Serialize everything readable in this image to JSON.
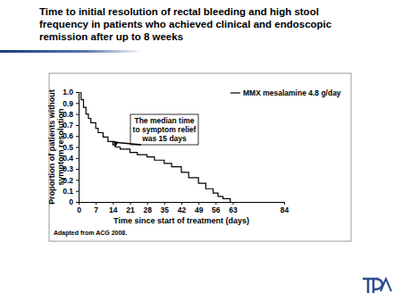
{
  "chart_data": {
    "type": "line",
    "title": [
      "Time to initial resolution of rectal bleeding and high stool",
      "frequency in patients who achieved clinical and endoscopic",
      "remission after up to 8 weeks"
    ],
    "x_label": "Time since start of treatment (days)",
    "y_label": [
      "Proportion of patients without",
      "symptom resolution"
    ],
    "x": [
      0,
      1,
      2,
      3,
      4,
      5,
      7,
      8,
      10,
      12,
      14,
      15,
      17,
      21,
      24,
      28,
      31,
      35,
      38,
      42,
      45,
      49,
      52,
      55,
      57,
      59,
      62
    ],
    "series": [
      {
        "name": "MMX mesalamine 4.8 g/day",
        "color": "#000000",
        "line_style": "step",
        "values": [
          1.0,
          0.93,
          0.86,
          0.8,
          0.76,
          0.72,
          0.67,
          0.63,
          0.59,
          0.55,
          0.52,
          0.5,
          0.48,
          0.45,
          0.43,
          0.41,
          0.38,
          0.35,
          0.32,
          0.27,
          0.22,
          0.17,
          0.12,
          0.08,
          0.05,
          0.03,
          0
        ]
      }
    ],
    "xlim": [
      0,
      84
    ],
    "xticks": [
      0,
      7,
      14,
      21,
      28,
      35,
      42,
      49,
      56,
      63,
      84
    ],
    "ylim": [
      0,
      1
    ],
    "yticks": [
      0,
      0.1,
      0.2,
      0.3,
      0.4,
      0.5,
      0.6,
      0.7,
      0.8,
      0.9,
      {
        "value": 1,
        "label": "1.0"
      }
    ],
    "legend": "top-right",
    "annotations": [
      {
        "text": [
          "The median time",
          "to symptom relief",
          "was 15 days"
        ],
        "x": 15,
        "y": 0.5
      }
    ],
    "source": "Adapted from ACG 2008."
  }
}
